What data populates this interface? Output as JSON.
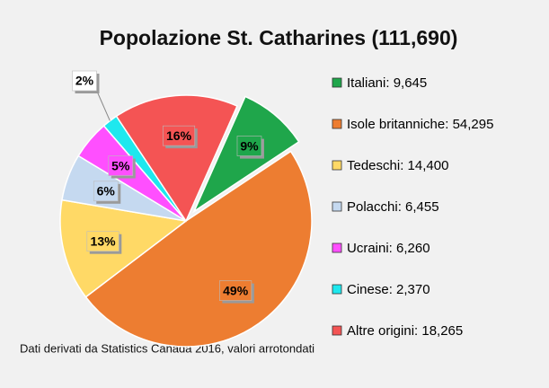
{
  "chart_data": {
    "type": "pie",
    "title": "Popolazione St. Catharines (111,690)",
    "categories": [
      "Italiani: 9,645",
      "Isole britanniche: 54,295",
      "Tedeschi: 14,400",
      "Polacchi: 6,455",
      "Ucraini: 6,260",
      "Cinese: 2,370",
      "Altre origini: 18,265"
    ],
    "values": [
      9,
      49,
      13,
      6,
      5,
      2,
      16
    ],
    "value_labels": [
      "9%",
      "49%",
      "13%",
      "6%",
      "5%",
      "2%",
      "16%"
    ],
    "colors": [
      "#1fa64b",
      "#ed7d31",
      "#ffd966",
      "#c5d9f0",
      "#ff4fff",
      "#1ee8ee",
      "#f45454"
    ],
    "legend": "right",
    "note": "Dati derivati da Statistics Canada 2016, valori arrotondati"
  }
}
